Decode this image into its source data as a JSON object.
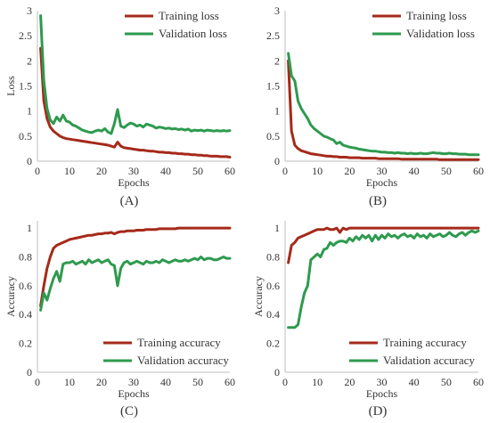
{
  "colors": {
    "training": "#a52a1a",
    "validation": "#2e9a4e",
    "axis": "#bfbfbf",
    "text": "#333333"
  },
  "chart_data": [
    {
      "panel_label": "(A)",
      "type": "line",
      "xlabel": "Epochs",
      "ylabel": "Loss",
      "xlim": [
        0,
        60
      ],
      "ylim": [
        0,
        3
      ],
      "xticks": [
        0,
        10,
        20,
        30,
        40,
        50,
        60
      ],
      "yticks": [
        0,
        0.5,
        1,
        1.5,
        2,
        2.5,
        3
      ],
      "ytick_labels": [
        "0",
        "0.5",
        "1",
        "1.5",
        "2",
        "2.5",
        "3"
      ],
      "grid": false,
      "legend_position": "top-right",
      "x": [
        1,
        2,
        3,
        4,
        5,
        6,
        7,
        8,
        9,
        10,
        11,
        12,
        13,
        14,
        15,
        16,
        17,
        18,
        19,
        20,
        21,
        22,
        23,
        24,
        25,
        26,
        27,
        28,
        29,
        30,
        31,
        32,
        33,
        34,
        35,
        36,
        37,
        38,
        39,
        40,
        41,
        42,
        43,
        44,
        45,
        46,
        47,
        48,
        49,
        50,
        51,
        52,
        53,
        54,
        55,
        56,
        57,
        58,
        59,
        60
      ],
      "series": [
        {
          "name": "Training loss",
          "color_key": "training",
          "values": [
            2.25,
            1.2,
            0.85,
            0.68,
            0.6,
            0.55,
            0.5,
            0.47,
            0.45,
            0.44,
            0.43,
            0.42,
            0.41,
            0.4,
            0.39,
            0.38,
            0.37,
            0.36,
            0.35,
            0.34,
            0.33,
            0.32,
            0.3,
            0.28,
            0.38,
            0.3,
            0.27,
            0.26,
            0.25,
            0.24,
            0.23,
            0.22,
            0.22,
            0.21,
            0.2,
            0.2,
            0.19,
            0.18,
            0.18,
            0.17,
            0.17,
            0.16,
            0.16,
            0.15,
            0.15,
            0.14,
            0.14,
            0.13,
            0.13,
            0.12,
            0.12,
            0.11,
            0.11,
            0.1,
            0.1,
            0.1,
            0.09,
            0.09,
            0.09,
            0.08
          ]
        },
        {
          "name": "Validation loss",
          "color_key": "validation",
          "values": [
            2.9,
            1.6,
            1.05,
            0.82,
            0.75,
            0.88,
            0.8,
            0.92,
            0.8,
            0.78,
            0.72,
            0.7,
            0.66,
            0.62,
            0.6,
            0.58,
            0.57,
            0.6,
            0.62,
            0.6,
            0.65,
            0.58,
            0.55,
            0.75,
            1.03,
            0.7,
            0.67,
            0.72,
            0.76,
            0.74,
            0.7,
            0.72,
            0.68,
            0.74,
            0.72,
            0.7,
            0.66,
            0.68,
            0.67,
            0.65,
            0.66,
            0.64,
            0.65,
            0.63,
            0.64,
            0.62,
            0.64,
            0.6,
            0.62,
            0.61,
            0.62,
            0.6,
            0.62,
            0.61,
            0.6,
            0.61,
            0.6,
            0.61,
            0.6,
            0.61
          ]
        }
      ]
    },
    {
      "panel_label": "(B)",
      "type": "line",
      "xlabel": "Epochs",
      "ylabel": "",
      "xlim": [
        0,
        60
      ],
      "ylim": [
        0,
        3
      ],
      "xticks": [
        0,
        10,
        20,
        30,
        40,
        50,
        60
      ],
      "yticks": [
        0,
        0.5,
        1,
        1.5,
        2,
        2.5,
        3
      ],
      "ytick_labels": [
        "0",
        "0.5",
        "1",
        "1.5",
        "2",
        "2.5",
        "3"
      ],
      "grid": false,
      "legend_position": "top-right",
      "x": [
        1,
        2,
        3,
        4,
        5,
        6,
        7,
        8,
        9,
        10,
        11,
        12,
        13,
        14,
        15,
        16,
        17,
        18,
        19,
        20,
        21,
        22,
        23,
        24,
        25,
        26,
        27,
        28,
        29,
        30,
        31,
        32,
        33,
        34,
        35,
        36,
        37,
        38,
        39,
        40,
        41,
        42,
        43,
        44,
        45,
        46,
        47,
        48,
        49,
        50,
        51,
        52,
        53,
        54,
        55,
        56,
        57,
        58,
        59,
        60
      ],
      "series": [
        {
          "name": "Training loss",
          "color_key": "training",
          "values": [
            2.0,
            0.6,
            0.32,
            0.25,
            0.21,
            0.19,
            0.17,
            0.15,
            0.14,
            0.13,
            0.12,
            0.11,
            0.1,
            0.1,
            0.09,
            0.09,
            0.08,
            0.08,
            0.08,
            0.07,
            0.07,
            0.07,
            0.07,
            0.06,
            0.06,
            0.06,
            0.06,
            0.06,
            0.05,
            0.05,
            0.05,
            0.05,
            0.05,
            0.05,
            0.05,
            0.04,
            0.04,
            0.04,
            0.04,
            0.04,
            0.04,
            0.04,
            0.04,
            0.04,
            0.04,
            0.04,
            0.04,
            0.03,
            0.03,
            0.03,
            0.03,
            0.03,
            0.03,
            0.03,
            0.03,
            0.03,
            0.03,
            0.03,
            0.03,
            0.03
          ]
        },
        {
          "name": "Validation loss",
          "color_key": "validation",
          "values": [
            2.15,
            1.7,
            1.6,
            1.2,
            1.05,
            0.95,
            0.85,
            0.72,
            0.65,
            0.6,
            0.55,
            0.5,
            0.48,
            0.45,
            0.42,
            0.35,
            0.38,
            0.32,
            0.3,
            0.28,
            0.27,
            0.26,
            0.24,
            0.23,
            0.22,
            0.21,
            0.2,
            0.2,
            0.19,
            0.18,
            0.18,
            0.17,
            0.17,
            0.16,
            0.17,
            0.16,
            0.16,
            0.15,
            0.16,
            0.15,
            0.15,
            0.16,
            0.15,
            0.15,
            0.16,
            0.17,
            0.16,
            0.16,
            0.15,
            0.15,
            0.16,
            0.15,
            0.15,
            0.14,
            0.14,
            0.14,
            0.13,
            0.13,
            0.13,
            0.13
          ]
        }
      ]
    },
    {
      "panel_label": "(C)",
      "type": "line",
      "xlabel": "Epochs",
      "ylabel": "Accuracy",
      "xlim": [
        0,
        60
      ],
      "ylim": [
        0,
        1.05
      ],
      "xticks": [
        0,
        10,
        20,
        30,
        40,
        50,
        60
      ],
      "yticks": [
        0,
        0.2,
        0.4,
        0.6,
        0.8,
        1
      ],
      "ytick_labels": [
        "0",
        "0.2",
        "0.4",
        "0.6",
        "0.8",
        "1"
      ],
      "grid": false,
      "legend_position": "bottom-center",
      "x": [
        1,
        2,
        3,
        4,
        5,
        6,
        7,
        8,
        9,
        10,
        11,
        12,
        13,
        14,
        15,
        16,
        17,
        18,
        19,
        20,
        21,
        22,
        23,
        24,
        25,
        26,
        27,
        28,
        29,
        30,
        31,
        32,
        33,
        34,
        35,
        36,
        37,
        38,
        39,
        40,
        41,
        42,
        43,
        44,
        45,
        46,
        47,
        48,
        49,
        50,
        51,
        52,
        53,
        54,
        55,
        56,
        57,
        58,
        59,
        60
      ],
      "series": [
        {
          "name": "Training accuracy",
          "color_key": "training",
          "values": [
            0.46,
            0.6,
            0.72,
            0.8,
            0.86,
            0.88,
            0.89,
            0.9,
            0.91,
            0.92,
            0.925,
            0.93,
            0.935,
            0.94,
            0.945,
            0.95,
            0.95,
            0.955,
            0.96,
            0.96,
            0.965,
            0.965,
            0.97,
            0.96,
            0.97,
            0.975,
            0.975,
            0.98,
            0.98,
            0.98,
            0.985,
            0.985,
            0.985,
            0.99,
            0.99,
            0.99,
            0.99,
            0.995,
            0.995,
            0.995,
            0.995,
            0.995,
            0.995,
            1,
            1,
            1,
            1,
            1,
            1,
            1,
            1,
            1,
            1,
            1,
            1,
            1,
            1,
            1,
            1,
            1
          ]
        },
        {
          "name": "Validation accuracy",
          "color_key": "validation",
          "values": [
            0.43,
            0.55,
            0.5,
            0.58,
            0.65,
            0.7,
            0.63,
            0.75,
            0.76,
            0.76,
            0.77,
            0.75,
            0.76,
            0.77,
            0.75,
            0.78,
            0.76,
            0.77,
            0.78,
            0.76,
            0.77,
            0.78,
            0.75,
            0.74,
            0.6,
            0.72,
            0.76,
            0.77,
            0.75,
            0.76,
            0.77,
            0.76,
            0.75,
            0.77,
            0.76,
            0.76,
            0.77,
            0.76,
            0.78,
            0.77,
            0.76,
            0.77,
            0.78,
            0.77,
            0.77,
            0.78,
            0.77,
            0.78,
            0.79,
            0.78,
            0.8,
            0.78,
            0.79,
            0.79,
            0.78,
            0.78,
            0.79,
            0.8,
            0.79,
            0.79
          ]
        }
      ]
    },
    {
      "panel_label": "(D)",
      "type": "line",
      "xlabel": "Epochs",
      "ylabel": "Accuracy",
      "xlim": [
        0,
        60
      ],
      "ylim": [
        0,
        1.05
      ],
      "xticks": [
        0,
        10,
        20,
        30,
        40,
        50,
        60
      ],
      "yticks": [
        0,
        0.2,
        0.4,
        0.6,
        0.8,
        1
      ],
      "ytick_labels": [
        "0",
        "0.2",
        "0.4",
        "0.6",
        "0.8",
        "1"
      ],
      "grid": false,
      "legend_position": "bottom-center",
      "x": [
        1,
        2,
        3,
        4,
        5,
        6,
        7,
        8,
        9,
        10,
        11,
        12,
        13,
        14,
        15,
        16,
        17,
        18,
        19,
        20,
        21,
        22,
        23,
        24,
        25,
        26,
        27,
        28,
        29,
        30,
        31,
        32,
        33,
        34,
        35,
        36,
        37,
        38,
        39,
        40,
        41,
        42,
        43,
        44,
        45,
        46,
        47,
        48,
        49,
        50,
        51,
        52,
        53,
        54,
        55,
        56,
        57,
        58,
        59,
        60
      ],
      "series": [
        {
          "name": "Training accuracy",
          "color_key": "training",
          "values": [
            0.76,
            0.88,
            0.9,
            0.93,
            0.94,
            0.95,
            0.96,
            0.97,
            0.98,
            0.99,
            0.99,
            0.99,
            1,
            0.99,
            0.99,
            1,
            0.97,
            1,
            0.99,
            1,
            1,
            1,
            1,
            1,
            1,
            1,
            1,
            1,
            1,
            1,
            1,
            1,
            1,
            1,
            1,
            1,
            1,
            1,
            1,
            1,
            1,
            1,
            1,
            1,
            1,
            1,
            1,
            1,
            1,
            1,
            1,
            1,
            1,
            1,
            1,
            1,
            1,
            1,
            1,
            1
          ]
        },
        {
          "name": "Validation accuracy",
          "color_key": "validation",
          "values": [
            0.31,
            0.31,
            0.31,
            0.33,
            0.45,
            0.55,
            0.6,
            0.78,
            0.8,
            0.82,
            0.8,
            0.85,
            0.86,
            0.9,
            0.88,
            0.9,
            0.91,
            0.91,
            0.9,
            0.93,
            0.91,
            0.94,
            0.92,
            0.95,
            0.93,
            0.95,
            0.91,
            0.95,
            0.92,
            0.95,
            0.93,
            0.96,
            0.94,
            0.95,
            0.93,
            0.95,
            0.96,
            0.94,
            0.95,
            0.93,
            0.96,
            0.94,
            0.95,
            0.93,
            0.96,
            0.94,
            0.95,
            0.96,
            0.94,
            0.95,
            0.97,
            0.95,
            0.94,
            0.96,
            0.97,
            0.95,
            0.97,
            0.98,
            0.97,
            0.98
          ]
        }
      ]
    }
  ]
}
